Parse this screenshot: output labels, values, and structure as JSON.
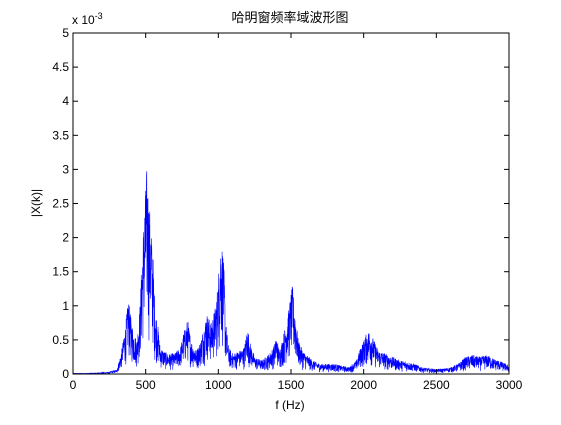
{
  "chart_data": {
    "type": "line",
    "title": "哈明窗频率域波形图",
    "xlabel": "f (Hz)",
    "ylabel": "|X(k)|",
    "y_exponent_label": "x 10",
    "y_exponent_power": "-3",
    "xlim": [
      0,
      3000
    ],
    "ylim": [
      0,
      5
    ],
    "x_ticks": [
      0,
      500,
      1000,
      1500,
      2000,
      2500,
      3000
    ],
    "y_ticks": [
      0,
      0.5,
      1,
      1.5,
      2,
      2.5,
      3,
      3.5,
      4,
      4.5,
      5
    ],
    "x_tick_labels": [
      "0",
      "500",
      "1000",
      "1500",
      "2000",
      "2500",
      "3000"
    ],
    "y_tick_labels": [
      "0",
      "0.5",
      "1",
      "1.5",
      "2",
      "2.5",
      "3",
      "3.5",
      "4",
      "4.5",
      "5"
    ],
    "grid": false,
    "line_color": "#0000ff",
    "series": [
      {
        "x": [
          0,
          100,
          200,
          250,
          300,
          330,
          360,
          380,
          390,
          400,
          420,
          440,
          460,
          480,
          490,
          500,
          510,
          520,
          530,
          540,
          550,
          560,
          570,
          580,
          590,
          600,
          620,
          650,
          700,
          740,
          760,
          780,
          790,
          800,
          820,
          850,
          880,
          900,
          920,
          950,
          980,
          1000,
          1010,
          1020,
          1030,
          1040,
          1050,
          1070,
          1100,
          1150,
          1180,
          1200,
          1220,
          1250,
          1300,
          1350,
          1380,
          1400,
          1420,
          1440,
          1460,
          1480,
          1500,
          1510,
          1520,
          1530,
          1550,
          1580,
          1600,
          1650,
          1700,
          1750,
          1800,
          1850,
          1900,
          1950,
          1980,
          2000,
          2020,
          2040,
          2060,
          2080,
          2100,
          2150,
          2200,
          2250,
          2300,
          2350,
          2400,
          2450,
          2500,
          2550,
          2600,
          2650,
          2700,
          2750,
          2800,
          2850,
          2900,
          2950,
          3000
        ],
        "y": [
          0.01,
          0.01,
          0.02,
          0.03,
          0.06,
          0.3,
          0.7,
          1.1,
          1.0,
          0.8,
          0.6,
          0.5,
          1.0,
          2.0,
          2.4,
          2.8,
          3.1,
          2.6,
          2.4,
          2.1,
          1.8,
          1.2,
          0.9,
          0.8,
          0.6,
          0.4,
          0.35,
          0.3,
          0.3,
          0.4,
          0.6,
          0.75,
          0.8,
          0.65,
          0.45,
          0.35,
          0.5,
          0.7,
          0.9,
          0.75,
          1.0,
          1.4,
          1.9,
          2.0,
          1.85,
          1.5,
          0.8,
          0.4,
          0.3,
          0.35,
          0.4,
          0.7,
          0.45,
          0.25,
          0.2,
          0.3,
          0.4,
          0.55,
          0.35,
          0.5,
          0.7,
          0.9,
          1.2,
          1.3,
          1.1,
          0.9,
          0.5,
          0.35,
          0.3,
          0.2,
          0.15,
          0.15,
          0.15,
          0.12,
          0.1,
          0.2,
          0.4,
          0.5,
          0.6,
          0.65,
          0.55,
          0.45,
          0.35,
          0.3,
          0.25,
          0.2,
          0.18,
          0.15,
          0.1,
          0.08,
          0.07,
          0.08,
          0.1,
          0.15,
          0.25,
          0.28,
          0.25,
          0.28,
          0.22,
          0.18,
          0.12
        ]
      }
    ]
  }
}
